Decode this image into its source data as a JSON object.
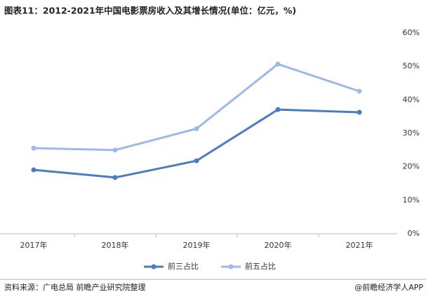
{
  "chart_data": {
    "type": "line",
    "title": "图表11：2012-2021年中国电影票房收入及其增长情况(单位：亿元，%)",
    "categories": [
      "2017年",
      "2018年",
      "2019年",
      "2020年",
      "2021年"
    ],
    "series": [
      {
        "name": "前三占比",
        "color": "#4a7cc0",
        "values": [
          19.1,
          16.8,
          21.8,
          37.1,
          36.3
        ]
      },
      {
        "name": "前五占比",
        "color": "#9db9e8",
        "values": [
          25.6,
          25.0,
          31.4,
          50.7,
          42.6
        ]
      }
    ],
    "ylim": [
      0,
      60
    ],
    "yticks": [
      {
        "value": 0,
        "label": "0%"
      },
      {
        "value": 10,
        "label": "10%"
      },
      {
        "value": 20,
        "label": "20%"
      },
      {
        "value": 30,
        "label": "30%"
      },
      {
        "value": 40,
        "label": "40%"
      },
      {
        "value": 50,
        "label": "50%"
      },
      {
        "value": 60,
        "label": "60%"
      }
    ],
    "source": "资料来源：广电总局 前瞻产业研究院整理",
    "credit": "@前瞻经济学人APP"
  }
}
